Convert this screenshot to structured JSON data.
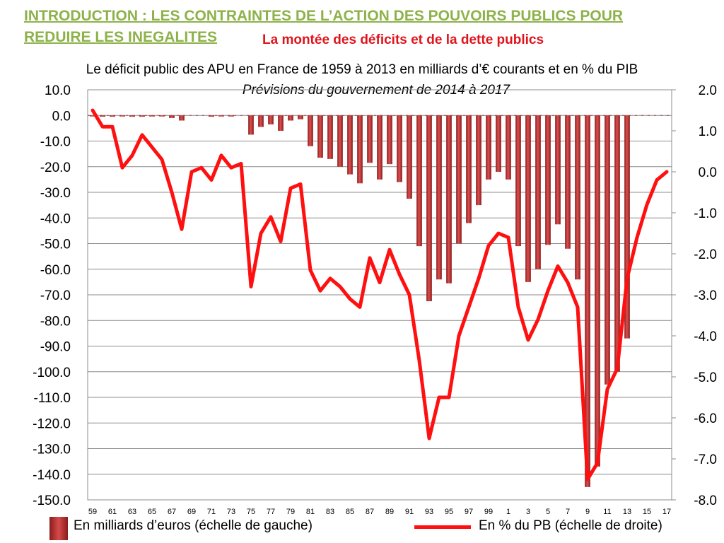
{
  "heading": {
    "line1": "INTRODUCTION : LES CONTRAINTES DE L’ACTION DES POUVOIRS PUBLICS POUR",
    "line2": "REDUIRE LES INEGALITES",
    "accent_color": "#8db24a"
  },
  "subheading": {
    "text": "La montée des déficits et de la dette publics",
    "color": "#e0141c"
  },
  "chart_data": {
    "type": "bar+line",
    "title": "Le déficit public des APU en France de 1959 à 2013 en milliards d’€ courants et en % du PIB",
    "subtitle": "Prévisions du gouvernement de 2014 à 2017",
    "x_labels": [
      "59",
      "61",
      "63",
      "65",
      "67",
      "69",
      "71",
      "73",
      "75",
      "77",
      "79",
      "81",
      "83",
      "85",
      "87",
      "89",
      "91",
      "93",
      "95",
      "97",
      "99",
      "1",
      "3",
      "5",
      "7",
      "9",
      "11",
      "13",
      "15",
      "17"
    ],
    "years": [
      1959,
      1960,
      1961,
      1962,
      1963,
      1964,
      1965,
      1966,
      1967,
      1968,
      1969,
      1970,
      1971,
      1972,
      1973,
      1974,
      1975,
      1976,
      1977,
      1978,
      1979,
      1980,
      1981,
      1982,
      1983,
      1984,
      1985,
      1986,
      1987,
      1988,
      1989,
      1990,
      1991,
      1992,
      1993,
      1994,
      1995,
      1996,
      1997,
      1998,
      1999,
      2000,
      2001,
      2002,
      2003,
      2004,
      2005,
      2006,
      2007,
      2008,
      2009,
      2010,
      2011,
      2012,
      2013,
      2014,
      2015,
      2016,
      2017
    ],
    "left_axis": {
      "ylim": [
        -150,
        10
      ],
      "ticks": [
        "10.0",
        "0.0",
        "-10.0",
        "-20.0",
        "-30.0",
        "-40.0",
        "-50.0",
        "-60.0",
        "-70.0",
        "-80.0",
        "-90.0",
        "-100.0",
        "-110.0",
        "-120.0",
        "-130.0",
        "-140.0",
        "-150.0"
      ]
    },
    "right_axis": {
      "ylim": [
        -8,
        2
      ],
      "ticks": [
        "2.0",
        "1.0",
        "0.0",
        "-1.0",
        "-2.0",
        "-3.0",
        "-4.0",
        "-5.0",
        "-6.0",
        "-7.0",
        "-8.0"
      ]
    },
    "grid": true,
    "series": [
      {
        "name": "En milliards d’euros (échelle de gauche)",
        "type": "bar",
        "axis": "left",
        "color": "#b22222",
        "values": [
          -0.3,
          -0.5,
          -0.5,
          -0.3,
          -0.5,
          -0.5,
          -0.3,
          -0.3,
          -1.0,
          -2.0,
          0.0,
          0.0,
          -0.5,
          -0.3,
          -0.3,
          0.0,
          -7.5,
          -4.5,
          -3.5,
          -6.0,
          -2.0,
          -1.5,
          -12.0,
          -16.5,
          -17.0,
          -20.0,
          -23.0,
          -26.5,
          -18.5,
          -25.0,
          -19.0,
          -26.0,
          -32.5,
          -51.0,
          -72.5,
          -64.0,
          -65.5,
          -50.0,
          -42.0,
          -35.0,
          -25.0,
          -22.0,
          -25.0,
          -51.0,
          -65.0,
          -60.0,
          -50.5,
          -42.5,
          -52.0,
          -64.0,
          -145.0,
          -137.0,
          -105.0,
          -100.0,
          -87.0,
          0,
          0,
          0,
          0
        ]
      },
      {
        "name": "En % du PB (échelle de droite)",
        "type": "line",
        "axis": "right",
        "color": "#ff1010",
        "values": [
          1.5,
          1.1,
          1.1,
          0.1,
          0.4,
          0.9,
          0.6,
          0.3,
          -0.5,
          -1.4,
          0.0,
          0.1,
          -0.2,
          0.4,
          0.1,
          0.2,
          -2.8,
          -1.5,
          -1.1,
          -1.7,
          -0.4,
          -0.3,
          -2.4,
          -2.9,
          -2.6,
          -2.8,
          -3.1,
          -3.3,
          -2.1,
          -2.7,
          -1.9,
          -2.5,
          -3.0,
          -4.6,
          -6.5,
          -5.5,
          -5.5,
          -4.0,
          -3.3,
          -2.6,
          -1.8,
          -1.5,
          -1.6,
          -3.3,
          -4.1,
          -3.6,
          -2.9,
          -2.3,
          -2.7,
          -3.3,
          -7.5,
          -7.1,
          -5.3,
          -4.8,
          -2.6,
          -1.6,
          -0.8,
          -0.2,
          0.0
        ]
      }
    ]
  }
}
